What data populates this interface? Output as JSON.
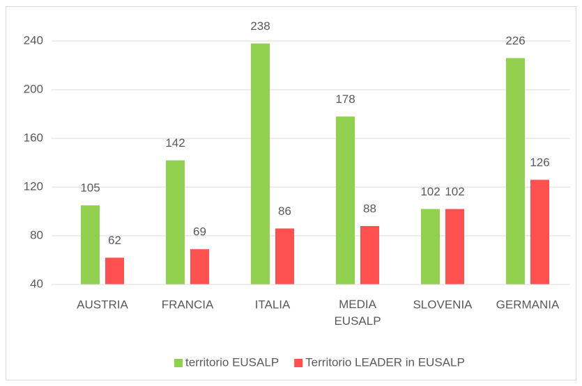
{
  "chart_data": {
    "type": "bar",
    "categories": [
      "AUSTRIA",
      "FRANCIA",
      "ITALIA",
      "MEDIA EUSALP",
      "SLOVENIA",
      "GERMANIA"
    ],
    "series": [
      {
        "name": "territorio EUSALP",
        "color": "#92d050",
        "values": [
          105,
          142,
          238,
          178,
          102,
          226
        ]
      },
      {
        "name": "Territorio LEADER in EUSALP",
        "color": "#ff5050",
        "values": [
          62,
          69,
          86,
          88,
          102,
          126
        ]
      }
    ],
    "ylim": [
      40,
      240
    ],
    "yticks": [
      40,
      80,
      120,
      160,
      200,
      240
    ],
    "grid": true,
    "legend": "bottom"
  }
}
